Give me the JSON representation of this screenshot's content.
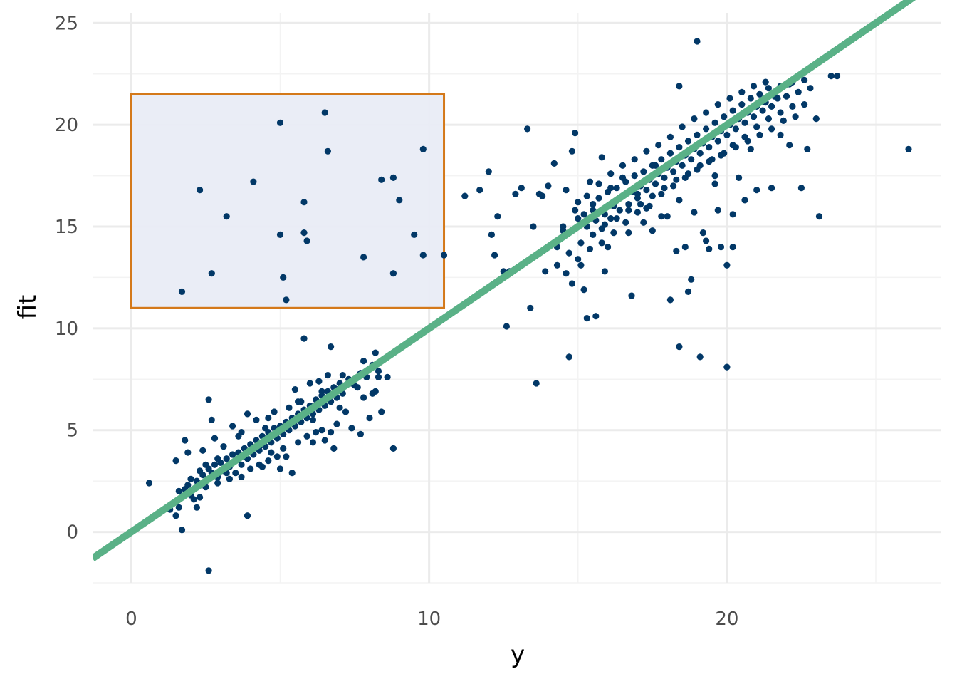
{
  "chart_data": {
    "type": "scatter",
    "xlabel": "y",
    "ylabel": "fit",
    "xlim": [
      -1.3,
      27.2
    ],
    "ylim": [
      -2.5,
      25.5
    ],
    "x_ticks": [
      0,
      10,
      20
    ],
    "x_tick_labels": [
      "0",
      "10",
      "20"
    ],
    "y_ticks": [
      0,
      5,
      10,
      15,
      20,
      25
    ],
    "y_tick_labels": [
      "0",
      "5",
      "10",
      "15",
      "20",
      "25"
    ],
    "grid": true,
    "colors": {
      "points": "#023867",
      "fit_line": "#5ab187",
      "highlight_fill": "#e9ecf5",
      "highlight_stroke": "#d4791a",
      "grid_major": "#ebebeb",
      "grid_minor": "#f3f3f3"
    },
    "fit_line": {
      "intercept": 0,
      "slope": 1
    },
    "highlight_region": {
      "x": [
        0,
        10.5
      ],
      "y": [
        11,
        21.5
      ]
    },
    "points": [
      [
        1.7,
        11.8
      ],
      [
        2.3,
        16.8
      ],
      [
        2.7,
        12.7
      ],
      [
        3.2,
        15.5
      ],
      [
        4.1,
        17.2
      ],
      [
        5.0,
        20.1
      ],
      [
        5.0,
        14.6
      ],
      [
        5.1,
        12.5
      ],
      [
        5.2,
        11.4
      ],
      [
        5.8,
        14.7
      ],
      [
        5.8,
        16.2
      ],
      [
        5.9,
        14.3
      ],
      [
        6.5,
        20.6
      ],
      [
        6.6,
        18.7
      ],
      [
        7.8,
        13.5
      ],
      [
        8.4,
        17.3
      ],
      [
        8.8,
        17.4
      ],
      [
        8.8,
        12.7
      ],
      [
        9.0,
        16.3
      ],
      [
        9.5,
        14.6
      ],
      [
        9.8,
        18.8
      ],
      [
        9.8,
        13.6
      ],
      [
        10.5,
        13.6
      ],
      [
        0.6,
        2.4
      ],
      [
        1.3,
        1.1
      ],
      [
        1.5,
        0.8
      ],
      [
        1.7,
        0.1
      ],
      [
        2.6,
        -1.9
      ],
      [
        3.9,
        0.8
      ],
      [
        2.6,
        6.5
      ],
      [
        2.7,
        5.5
      ],
      [
        5.8,
        9.5
      ],
      [
        6.7,
        9.1
      ],
      [
        1.6,
        2.0
      ],
      [
        1.9,
        2.3
      ],
      [
        2.0,
        2.6
      ],
      [
        2.2,
        2.5
      ],
      [
        2.3,
        3.0
      ],
      [
        2.4,
        2.8
      ],
      [
        2.5,
        2.2
      ],
      [
        2.6,
        3.1
      ],
      [
        2.7,
        2.9
      ],
      [
        2.8,
        3.3
      ],
      [
        2.9,
        2.7
      ],
      [
        3.0,
        3.4
      ],
      [
        3.1,
        3.0
      ],
      [
        3.2,
        3.6
      ],
      [
        3.3,
        3.2
      ],
      [
        3.4,
        3.8
      ],
      [
        3.5,
        3.5
      ],
      [
        3.6,
        3.9
      ],
      [
        3.7,
        3.3
      ],
      [
        3.8,
        4.1
      ],
      [
        3.9,
        3.6
      ],
      [
        4.0,
        4.3
      ],
      [
        4.1,
        3.8
      ],
      [
        4.2,
        4.5
      ],
      [
        4.3,
        4.0
      ],
      [
        4.4,
        4.7
      ],
      [
        4.5,
        4.2
      ],
      [
        4.6,
        4.9
      ],
      [
        4.7,
        4.4
      ],
      [
        4.8,
        5.1
      ],
      [
        4.9,
        4.6
      ],
      [
        5.0,
        5.2
      ],
      [
        5.1,
        4.8
      ],
      [
        5.2,
        5.4
      ],
      [
        5.3,
        5.0
      ],
      [
        5.4,
        5.6
      ],
      [
        5.5,
        5.2
      ],
      [
        5.6,
        5.8
      ],
      [
        5.7,
        5.4
      ],
      [
        5.8,
        6.0
      ],
      [
        5.9,
        5.6
      ],
      [
        6.0,
        6.2
      ],
      [
        6.1,
        5.8
      ],
      [
        6.2,
        6.5
      ],
      [
        6.3,
        6.0
      ],
      [
        6.4,
        6.7
      ],
      [
        6.5,
        6.2
      ],
      [
        6.6,
        6.9
      ],
      [
        6.7,
        6.4
      ],
      [
        6.8,
        7.1
      ],
      [
        6.9,
        6.6
      ],
      [
        7.0,
        7.3
      ],
      [
        7.1,
        6.8
      ],
      [
        7.3,
        7.5
      ],
      [
        7.5,
        7.2
      ],
      [
        7.7,
        7.8
      ],
      [
        7.9,
        7.6
      ],
      [
        8.1,
        8.2
      ],
      [
        8.3,
        7.9
      ],
      [
        8.5,
        8.5
      ],
      [
        8.6,
        7.6
      ],
      [
        1.5,
        3.5
      ],
      [
        1.8,
        4.5
      ],
      [
        1.9,
        3.9
      ],
      [
        2.1,
        1.6
      ],
      [
        2.2,
        1.2
      ],
      [
        2.4,
        4.0
      ],
      [
        2.5,
        3.3
      ],
      [
        2.8,
        4.6
      ],
      [
        2.9,
        2.4
      ],
      [
        3.1,
        4.2
      ],
      [
        3.3,
        2.6
      ],
      [
        3.4,
        5.2
      ],
      [
        3.5,
        2.9
      ],
      [
        3.6,
        4.7
      ],
      [
        3.7,
        2.7
      ],
      [
        3.9,
        5.8
      ],
      [
        4.0,
        3.1
      ],
      [
        4.2,
        5.5
      ],
      [
        4.3,
        3.3
      ],
      [
        4.4,
        3.2
      ],
      [
        4.5,
        5.1
      ],
      [
        4.6,
        3.5
      ],
      [
        4.7,
        3.9
      ],
      [
        4.8,
        5.9
      ],
      [
        4.9,
        3.7
      ],
      [
        5.0,
        3.1
      ],
      [
        5.2,
        3.7
      ],
      [
        5.3,
        6.1
      ],
      [
        5.4,
        2.9
      ],
      [
        5.5,
        7.0
      ],
      [
        5.6,
        4.4
      ],
      [
        5.7,
        6.4
      ],
      [
        5.9,
        4.7
      ],
      [
        6.1,
        4.4
      ],
      [
        6.2,
        4.9
      ],
      [
        6.3,
        7.4
      ],
      [
        6.4,
        5.0
      ],
      [
        6.5,
        4.5
      ],
      [
        6.6,
        7.7
      ],
      [
        6.7,
        4.9
      ],
      [
        6.8,
        4.1
      ],
      [
        6.9,
        5.3
      ],
      [
        7.0,
        6.1
      ],
      [
        7.1,
        7.7
      ],
      [
        7.2,
        5.9
      ],
      [
        7.4,
        5.1
      ],
      [
        7.6,
        7.1
      ],
      [
        7.7,
        4.8
      ],
      [
        7.8,
        6.6
      ],
      [
        8.0,
        5.6
      ],
      [
        8.1,
        6.8
      ],
      [
        8.2,
        6.9
      ],
      [
        8.4,
        5.9
      ],
      [
        8.8,
        4.1
      ],
      [
        8.2,
        8.8
      ],
      [
        7.8,
        8.4
      ],
      [
        6.0,
        7.3
      ],
      [
        6.4,
        6.9
      ],
      [
        5.1,
        4.1
      ],
      [
        4.3,
        4.2
      ],
      [
        3.7,
        4.9
      ],
      [
        3.2,
        2.9
      ],
      [
        2.9,
        3.6
      ],
      [
        2.0,
        1.8
      ],
      [
        1.8,
        2.1
      ],
      [
        1.6,
        1.2
      ],
      [
        2.3,
        1.7
      ],
      [
        4.6,
        5.6
      ],
      [
        5.6,
        6.4
      ],
      [
        6.1,
        5.5
      ],
      [
        6.9,
        7.0
      ],
      [
        7.4,
        7.3
      ],
      [
        8.3,
        7.6
      ],
      [
        11.2,
        16.5
      ],
      [
        11.7,
        16.8
      ],
      [
        12.0,
        17.7
      ],
      [
        12.1,
        14.6
      ],
      [
        12.2,
        13.6
      ],
      [
        12.3,
        15.5
      ],
      [
        12.5,
        12.8
      ],
      [
        12.6,
        10.1
      ],
      [
        12.7,
        12.8
      ],
      [
        12.9,
        16.6
      ],
      [
        13.1,
        16.9
      ],
      [
        13.3,
        19.8
      ],
      [
        13.4,
        11.0
      ],
      [
        13.5,
        15.0
      ],
      [
        13.6,
        7.3
      ],
      [
        13.7,
        16.6
      ],
      [
        13.8,
        16.5
      ],
      [
        13.9,
        12.8
      ],
      [
        14.0,
        17.0
      ],
      [
        14.2,
        18.1
      ],
      [
        14.3,
        14.0
      ],
      [
        14.5,
        15.0
      ],
      [
        14.6,
        16.8
      ],
      [
        14.7,
        8.6
      ],
      [
        14.8,
        18.7
      ],
      [
        14.9,
        19.6
      ],
      [
        15.0,
        16.2
      ],
      [
        15.1,
        13.1
      ],
      [
        15.2,
        11.9
      ],
      [
        15.3,
        10.5
      ],
      [
        15.4,
        17.2
      ],
      [
        15.5,
        15.8
      ],
      [
        15.6,
        10.6
      ],
      [
        15.8,
        18.4
      ],
      [
        15.9,
        12.8
      ],
      [
        16.1,
        16.9
      ],
      [
        16.3,
        16.3
      ],
      [
        16.5,
        17.4
      ],
      [
        16.7,
        14.7
      ],
      [
        16.8,
        11.6
      ],
      [
        17.0,
        16.6
      ],
      [
        17.3,
        15.9
      ],
      [
        17.5,
        14.8
      ],
      [
        17.6,
        18.0
      ],
      [
        17.8,
        15.5
      ],
      [
        18.0,
        15.5
      ],
      [
        18.1,
        11.4
      ],
      [
        18.3,
        13.8
      ],
      [
        18.4,
        9.1
      ],
      [
        18.6,
        14.0
      ],
      [
        18.7,
        11.8
      ],
      [
        18.8,
        12.4
      ],
      [
        18.9,
        15.7
      ],
      [
        19.1,
        8.6
      ],
      [
        19.2,
        14.7
      ],
      [
        19.3,
        14.3
      ],
      [
        19.4,
        13.9
      ],
      [
        19.6,
        17.1
      ],
      [
        19.7,
        15.8
      ],
      [
        19.8,
        14.0
      ],
      [
        20.0,
        13.1
      ],
      [
        20.0,
        8.1
      ],
      [
        20.2,
        14.0
      ],
      [
        20.2,
        15.6
      ],
      [
        20.4,
        17.4
      ],
      [
        20.6,
        16.3
      ],
      [
        21.0,
        16.8
      ],
      [
        21.5,
        16.9
      ],
      [
        21.8,
        19.5
      ],
      [
        22.1,
        19.0
      ],
      [
        22.5,
        16.9
      ],
      [
        22.7,
        18.8
      ],
      [
        23.0,
        20.3
      ],
      [
        23.1,
        15.5
      ],
      [
        23.5,
        22.4
      ],
      [
        23.7,
        22.4
      ],
      [
        26.1,
        18.8
      ],
      [
        19.0,
        24.1
      ],
      [
        18.4,
        21.9
      ],
      [
        15.0,
        15.4
      ],
      [
        15.2,
        15.6
      ],
      [
        15.3,
        15.0
      ],
      [
        15.5,
        16.1
      ],
      [
        15.6,
        15.3
      ],
      [
        15.7,
        16.4
      ],
      [
        15.8,
        14.9
      ],
      [
        15.9,
        15.6
      ],
      [
        16.0,
        16.7
      ],
      [
        16.1,
        15.4
      ],
      [
        16.2,
        16.0
      ],
      [
        16.3,
        16.9
      ],
      [
        16.4,
        15.8
      ],
      [
        16.5,
        16.5
      ],
      [
        16.6,
        17.2
      ],
      [
        16.7,
        16.1
      ],
      [
        16.8,
        16.7
      ],
      [
        16.9,
        17.5
      ],
      [
        17.0,
        16.4
      ],
      [
        17.1,
        17.0
      ],
      [
        17.2,
        17.7
      ],
      [
        17.3,
        16.8
      ],
      [
        17.4,
        17.3
      ],
      [
        17.5,
        18.0
      ],
      [
        17.6,
        17.1
      ],
      [
        17.7,
        17.6
      ],
      [
        17.8,
        18.3
      ],
      [
        17.9,
        17.4
      ],
      [
        18.0,
        17.9
      ],
      [
        18.1,
        18.6
      ],
      [
        18.2,
        17.7
      ],
      [
        18.3,
        18.2
      ],
      [
        18.4,
        18.9
      ],
      [
        18.5,
        18.0
      ],
      [
        18.6,
        18.5
      ],
      [
        18.7,
        19.2
      ],
      [
        18.8,
        18.3
      ],
      [
        18.9,
        18.8
      ],
      [
        19.0,
        19.5
      ],
      [
        19.1,
        18.6
      ],
      [
        19.2,
        19.1
      ],
      [
        19.3,
        19.8
      ],
      [
        19.4,
        18.9
      ],
      [
        19.5,
        19.4
      ],
      [
        19.6,
        20.1
      ],
      [
        19.7,
        19.2
      ],
      [
        19.8,
        19.7
      ],
      [
        19.9,
        20.4
      ],
      [
        20.0,
        19.5
      ],
      [
        20.1,
        20.0
      ],
      [
        20.2,
        20.7
      ],
      [
        20.3,
        19.8
      ],
      [
        20.4,
        20.3
      ],
      [
        20.5,
        21.0
      ],
      [
        20.6,
        20.1
      ],
      [
        20.7,
        20.6
      ],
      [
        20.8,
        21.3
      ],
      [
        20.9,
        20.4
      ],
      [
        21.0,
        20.9
      ],
      [
        21.1,
        21.5
      ],
      [
        21.2,
        20.7
      ],
      [
        21.3,
        21.1
      ],
      [
        21.4,
        21.8
      ],
      [
        21.5,
        20.9
      ],
      [
        21.6,
        21.4
      ],
      [
        21.8,
        21.9
      ],
      [
        22.0,
        21.4
      ],
      [
        22.2,
        22.1
      ],
      [
        22.4,
        21.6
      ],
      [
        22.6,
        22.2
      ],
      [
        22.8,
        21.8
      ],
      [
        14.5,
        14.8
      ],
      [
        14.7,
        13.7
      ],
      [
        14.9,
        15.8
      ],
      [
        15.1,
        14.2
      ],
      [
        15.3,
        16.5
      ],
      [
        15.5,
        14.6
      ],
      [
        15.7,
        17.1
      ],
      [
        15.9,
        15.1
      ],
      [
        16.1,
        17.6
      ],
      [
        16.3,
        15.4
      ],
      [
        16.5,
        18.0
      ],
      [
        16.7,
        15.8
      ],
      [
        16.9,
        18.3
      ],
      [
        17.1,
        16.1
      ],
      [
        17.3,
        18.7
      ],
      [
        17.5,
        16.5
      ],
      [
        17.7,
        19.0
      ],
      [
        17.9,
        16.9
      ],
      [
        18.1,
        19.4
      ],
      [
        18.3,
        17.3
      ],
      [
        18.5,
        19.9
      ],
      [
        18.7,
        17.6
      ],
      [
        18.9,
        20.3
      ],
      [
        19.1,
        18.0
      ],
      [
        19.3,
        20.6
      ],
      [
        19.5,
        18.3
      ],
      [
        19.7,
        21.0
      ],
      [
        19.9,
        18.6
      ],
      [
        20.1,
        21.3
      ],
      [
        20.3,
        18.9
      ],
      [
        20.5,
        21.6
      ],
      [
        20.7,
        19.2
      ],
      [
        20.9,
        21.9
      ],
      [
        21.1,
        19.5
      ],
      [
        21.3,
        22.1
      ],
      [
        21.5,
        19.8
      ],
      [
        21.7,
        21.3
      ],
      [
        21.9,
        20.2
      ],
      [
        22.1,
        22.0
      ],
      [
        22.3,
        20.4
      ],
      [
        22.6,
        21.0
      ],
      [
        14.3,
        13.1
      ],
      [
        14.6,
        12.7
      ],
      [
        14.8,
        12.2
      ],
      [
        15.0,
        13.4
      ],
      [
        15.4,
        13.9
      ],
      [
        15.8,
        14.2
      ],
      [
        16.2,
        14.7
      ],
      [
        16.6,
        15.2
      ],
      [
        17.0,
        15.7
      ],
      [
        17.4,
        16.0
      ],
      [
        17.8,
        16.6
      ],
      [
        18.2,
        17.0
      ],
      [
        18.6,
        17.4
      ],
      [
        19.0,
        17.8
      ],
      [
        19.4,
        18.2
      ],
      [
        19.8,
        18.5
      ],
      [
        20.2,
        19.0
      ],
      [
        20.6,
        19.4
      ],
      [
        21.0,
        19.9
      ],
      [
        21.4,
        20.3
      ],
      [
        21.8,
        20.6
      ],
      [
        22.2,
        20.9
      ],
      [
        16.0,
        14.0
      ],
      [
        17.2,
        15.2
      ],
      [
        18.4,
        16.3
      ],
      [
        19.6,
        17.5
      ],
      [
        20.8,
        18.8
      ]
    ]
  }
}
